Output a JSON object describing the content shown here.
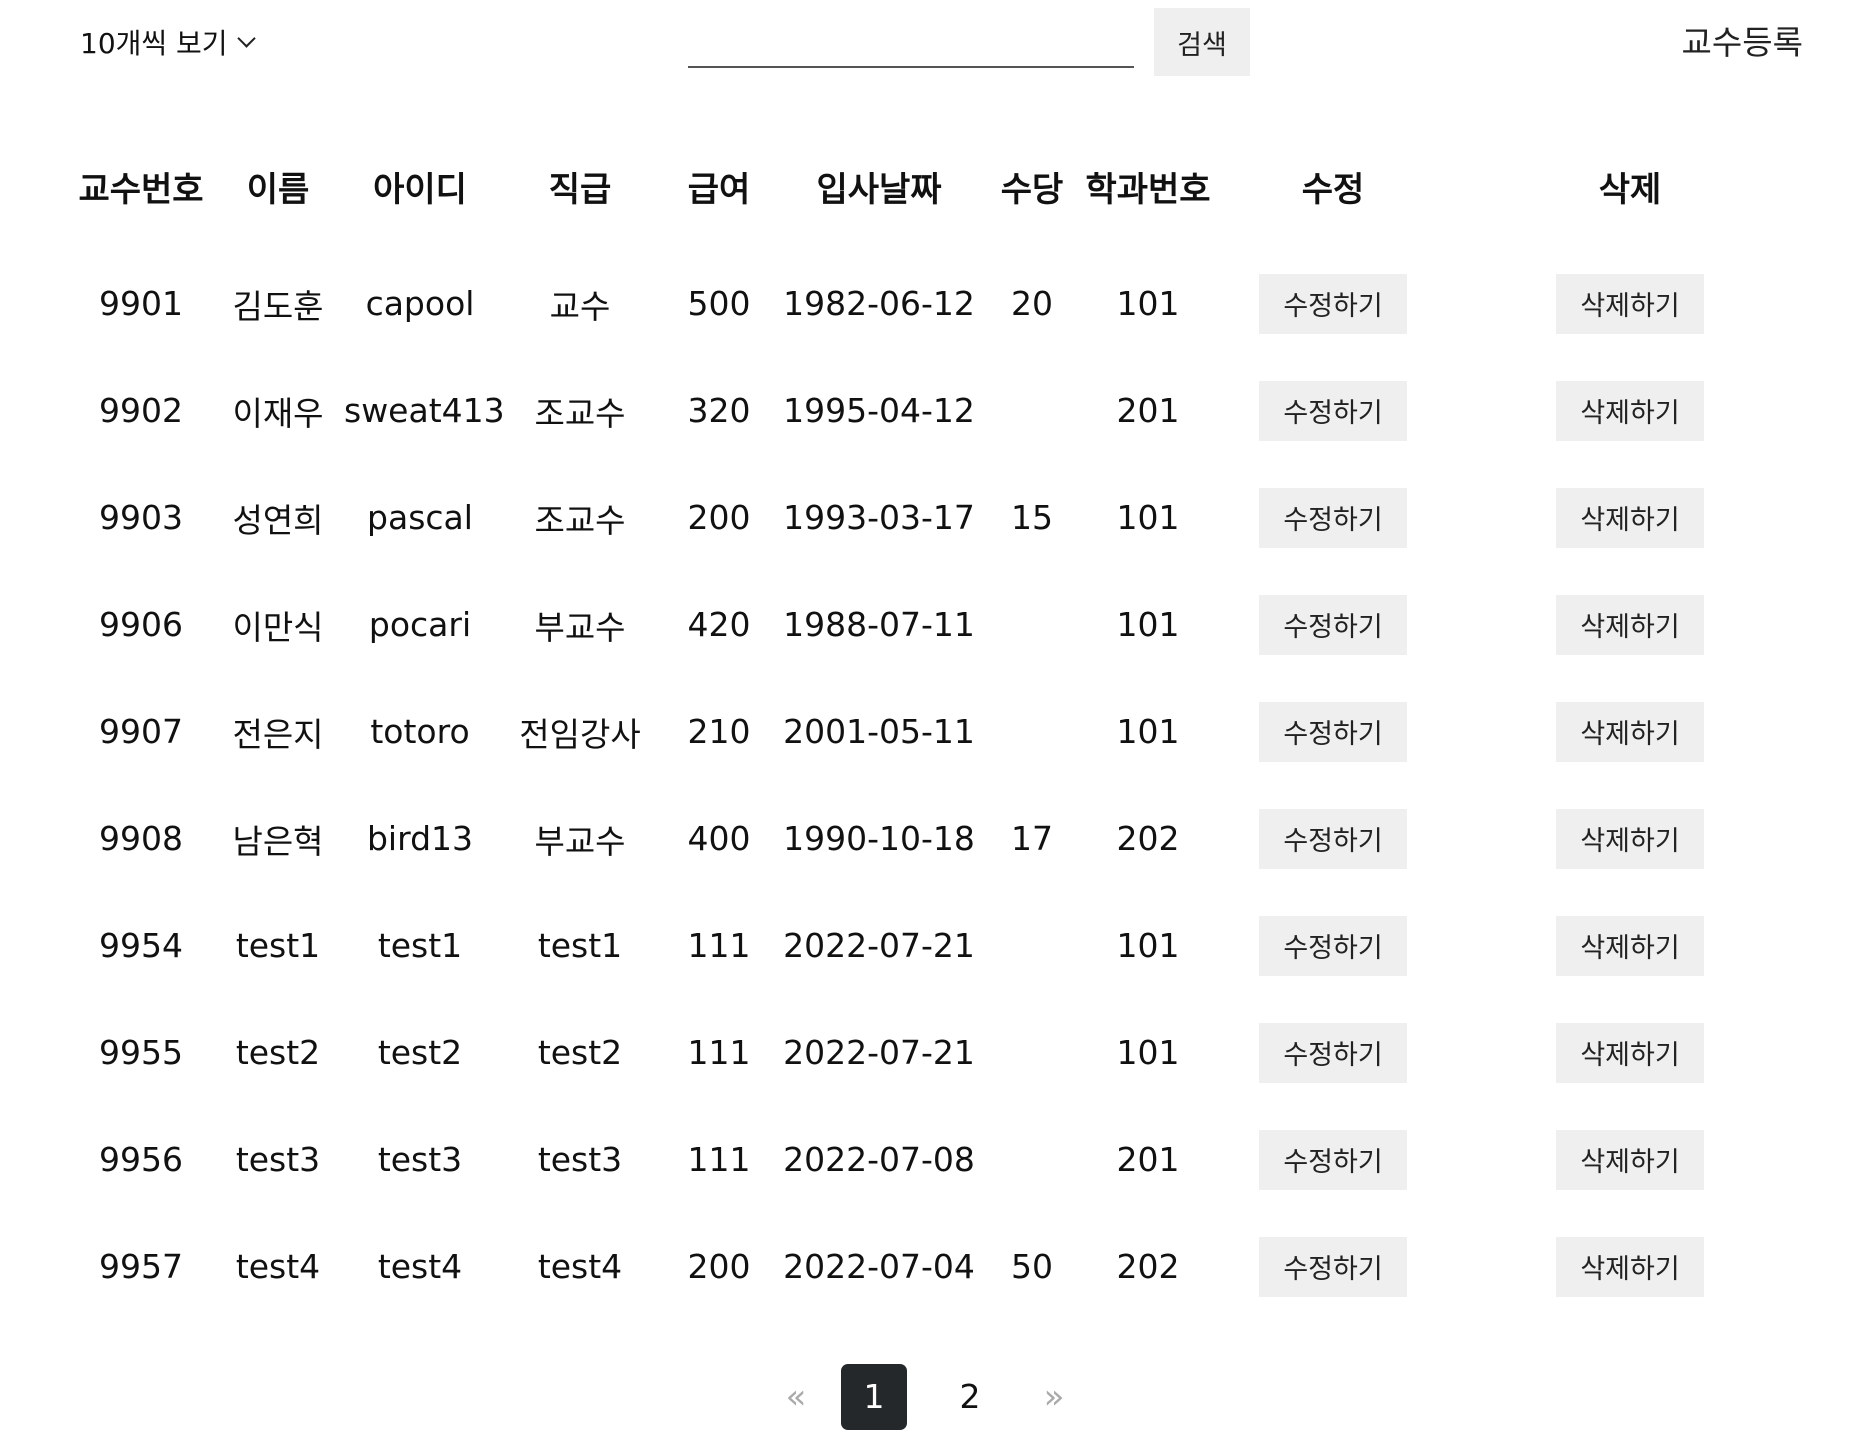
{
  "toolbar": {
    "page_size_label": "10개씩 보기",
    "search_value": "",
    "search_placeholder": "",
    "search_button_label": "검색",
    "register_label": "교수등록"
  },
  "table": {
    "headers": [
      "교수번호",
      "이름",
      "아이디",
      "직급",
      "급여",
      "입사날짜",
      "수당",
      "학과번호",
      "수정",
      "삭제"
    ],
    "edit_button_label": "수정하기",
    "delete_button_label": "삭제하기",
    "rows": [
      {
        "no": "9901",
        "name": "김도훈",
        "id": "capool",
        "rank": "교수",
        "salary": "500",
        "hiredate": "1982-06-12",
        "comm": "20",
        "deptno": "101"
      },
      {
        "no": "9902",
        "name": "이재우",
        "id": "sweat413",
        "rank": "조교수",
        "salary": "320",
        "hiredate": "1995-04-12",
        "comm": "",
        "deptno": "201"
      },
      {
        "no": "9903",
        "name": "성연희",
        "id": "pascal",
        "rank": "조교수",
        "salary": "200",
        "hiredate": "1993-03-17",
        "comm": "15",
        "deptno": "101"
      },
      {
        "no": "9906",
        "name": "이만식",
        "id": "pocari",
        "rank": "부교수",
        "salary": "420",
        "hiredate": "1988-07-11",
        "comm": "",
        "deptno": "101"
      },
      {
        "no": "9907",
        "name": "전은지",
        "id": "totoro",
        "rank": "전임강사",
        "salary": "210",
        "hiredate": "2001-05-11",
        "comm": "",
        "deptno": "101"
      },
      {
        "no": "9908",
        "name": "남은혁",
        "id": "bird13",
        "rank": "부교수",
        "salary": "400",
        "hiredate": "1990-10-18",
        "comm": "17",
        "deptno": "202"
      },
      {
        "no": "9954",
        "name": "test1",
        "id": "test1",
        "rank": "test1",
        "salary": "111",
        "hiredate": "2022-07-21",
        "comm": "",
        "deptno": "101"
      },
      {
        "no": "9955",
        "name": "test2",
        "id": "test2",
        "rank": "test2",
        "salary": "111",
        "hiredate": "2022-07-21",
        "comm": "",
        "deptno": "101"
      },
      {
        "no": "9956",
        "name": "test3",
        "id": "test3",
        "rank": "test3",
        "salary": "111",
        "hiredate": "2022-07-08",
        "comm": "",
        "deptno": "201"
      },
      {
        "no": "9957",
        "name": "test4",
        "id": "test4",
        "rank": "test4",
        "salary": "200",
        "hiredate": "2022-07-04",
        "comm": "50",
        "deptno": "202"
      }
    ]
  },
  "pagination": {
    "prev_label": "«",
    "next_label": "»",
    "pages": [
      "1",
      "2"
    ],
    "current": "1"
  }
}
